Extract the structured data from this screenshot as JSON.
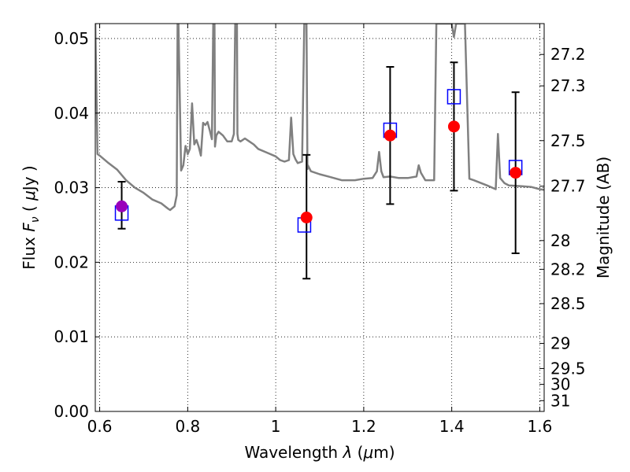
{
  "chart_data": {
    "type": "scatter",
    "xlabel_parts": [
      "Wavelength  ",
      "λ",
      " (",
      "μ",
      "m)"
    ],
    "ylabel_parts": [
      "Flux  ",
      "F",
      "ν",
      "  ( ",
      "μ",
      "Jy )"
    ],
    "y2label": "Magnitude (AB)",
    "xlim": [
      0.59,
      1.61
    ],
    "ylim": [
      0.0,
      0.052
    ],
    "grid": true,
    "x_ticks": [
      0.6,
      0.8,
      1.0,
      1.2,
      1.4,
      1.6
    ],
    "x_tick_labels": [
      "0.6",
      "0.8",
      "1",
      "1.2",
      "1.4",
      "1.6"
    ],
    "y_ticks": [
      0.0,
      0.01,
      0.02,
      0.03,
      0.04,
      0.05
    ],
    "y_tick_labels": [
      "0.00",
      "0.01",
      "0.02",
      "0.03",
      "0.04",
      "0.05"
    ],
    "y2_ticks": [
      27.2,
      27.3,
      27.5,
      27.7,
      28,
      28.2,
      28.5,
      29,
      29.5,
      30,
      31
    ],
    "y2_tick_labels": [
      "27.2",
      "27.3",
      "27.5",
      "27.7",
      "28",
      "28.2",
      "28.5",
      "29",
      "29.5",
      "30",
      "31"
    ],
    "series": [
      {
        "style": "model-spectrum-line",
        "color": "#808080",
        "x": [
          0.59,
          0.595,
          0.6,
          0.62,
          0.64,
          0.66,
          0.68,
          0.7,
          0.72,
          0.74,
          0.755,
          0.76,
          0.77,
          0.775,
          0.776,
          0.777,
          0.778,
          0.779,
          0.785,
          0.79,
          0.795,
          0.8,
          0.805,
          0.81,
          0.815,
          0.82,
          0.825,
          0.83,
          0.835,
          0.84,
          0.845,
          0.85,
          0.855,
          0.858,
          0.86,
          0.861,
          0.862,
          0.865,
          0.87,
          0.88,
          0.89,
          0.9,
          0.905,
          0.908,
          0.91,
          0.912,
          0.913,
          0.915,
          0.92,
          0.93,
          0.94,
          0.95,
          0.96,
          0.98,
          1.0,
          1.01,
          1.02,
          1.03,
          1.035,
          1.04,
          1.045,
          1.05,
          1.06,
          1.065,
          1.066,
          1.068,
          1.07,
          1.072,
          1.073,
          1.08,
          1.1,
          1.12,
          1.15,
          1.18,
          1.2,
          1.22,
          1.23,
          1.235,
          1.24,
          1.245,
          1.26,
          1.28,
          1.3,
          1.32,
          1.325,
          1.33,
          1.34,
          1.36,
          1.365,
          1.368,
          1.37,
          1.38,
          1.39,
          1.4,
          1.405,
          1.41,
          1.42,
          1.425,
          1.43,
          1.44,
          1.45,
          1.48,
          1.5,
          1.505,
          1.51,
          1.52,
          1.53,
          1.56,
          1.58,
          1.6,
          1.61
        ],
        "y": [
          0.052,
          0.0345,
          0.0343,
          0.0333,
          0.0324,
          0.031,
          0.03,
          0.0293,
          0.0284,
          0.0279,
          0.0272,
          0.027,
          0.0275,
          0.029,
          0.04,
          0.052,
          0.052,
          0.052,
          0.0323,
          0.033,
          0.0356,
          0.0345,
          0.0352,
          0.0413,
          0.0358,
          0.0364,
          0.0355,
          0.0343,
          0.0387,
          0.0384,
          0.0388,
          0.0377,
          0.0365,
          0.052,
          0.052,
          0.052,
          0.0355,
          0.037,
          0.0375,
          0.037,
          0.0362,
          0.0362,
          0.0372,
          0.052,
          0.052,
          0.052,
          0.0372,
          0.0364,
          0.0362,
          0.0366,
          0.0362,
          0.0358,
          0.0352,
          0.0347,
          0.0342,
          0.0337,
          0.0335,
          0.0337,
          0.0394,
          0.0345,
          0.0338,
          0.0333,
          0.0335,
          0.052,
          0.052,
          0.052,
          0.052,
          0.0325,
          0.033,
          0.0322,
          0.0318,
          0.0315,
          0.031,
          0.031,
          0.0312,
          0.0313,
          0.0322,
          0.0348,
          0.0322,
          0.0314,
          0.0315,
          0.0313,
          0.0313,
          0.0315,
          0.033,
          0.032,
          0.031,
          0.031,
          0.052,
          0.052,
          0.052,
          0.052,
          0.052,
          0.052,
          0.0502,
          0.052,
          0.052,
          0.052,
          0.052,
          0.0312,
          0.031,
          0.0303,
          0.0298,
          0.0372,
          0.0313,
          0.0306,
          0.0303,
          0.0302,
          0.0301,
          0.0298,
          0.0297
        ]
      },
      {
        "style": "observed-points-with-errorbars",
        "x": [
          0.65,
          1.07,
          1.26,
          1.405,
          1.545
        ],
        "y": [
          0.0275,
          0.026,
          0.037,
          0.0382,
          0.032
        ],
        "yerr_low": [
          0.0245,
          0.0178,
          0.0278,
          0.0296,
          0.0212
        ],
        "yerr_high": [
          0.0308,
          0.0344,
          0.0462,
          0.0468,
          0.0428
        ],
        "colors": [
          "#9900bb",
          "#ff0000",
          "#ff0000",
          "#ff0000",
          "#ff0000"
        ]
      },
      {
        "style": "model-band-flux-squares",
        "color": "#0000ff",
        "x": [
          0.65,
          1.065,
          1.26,
          1.405,
          1.545
        ],
        "y": [
          0.0266,
          0.025,
          0.0377,
          0.0422,
          0.0327
        ]
      }
    ]
  }
}
